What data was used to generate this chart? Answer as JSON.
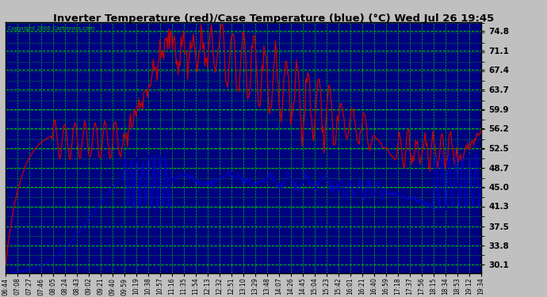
{
  "title": "Inverter Temperature (red)/Case Temperature (blue) (°C) Wed Jul 26 19:45",
  "copyright": "Copyright 2006 Cartronics.com",
  "plot_bg_color": "#000080",
  "grid_color": "#00cc00",
  "red_color": "#cc0000",
  "blue_color": "#0000cc",
  "fig_bg_color": "#c0c0c0",
  "yticks": [
    30.1,
    33.8,
    37.5,
    41.3,
    45.0,
    48.7,
    52.5,
    56.2,
    59.9,
    63.7,
    67.4,
    71.1,
    74.8
  ],
  "ylim": [
    28.5,
    76.5
  ],
  "xtick_labels": [
    "06:44",
    "07:08",
    "07:27",
    "07:46",
    "08:05",
    "08:24",
    "08:43",
    "09:02",
    "09:21",
    "09:40",
    "09:59",
    "10:19",
    "10:38",
    "10:57",
    "11:16",
    "11:35",
    "11:54",
    "12:13",
    "12:32",
    "12:51",
    "13:10",
    "13:29",
    "13:48",
    "14:07",
    "14:26",
    "14:45",
    "15:04",
    "15:23",
    "15:42",
    "16:01",
    "16:21",
    "16:40",
    "16:59",
    "17:18",
    "17:37",
    "17:56",
    "18:15",
    "18:34",
    "18:53",
    "19:12",
    "19:34"
  ]
}
